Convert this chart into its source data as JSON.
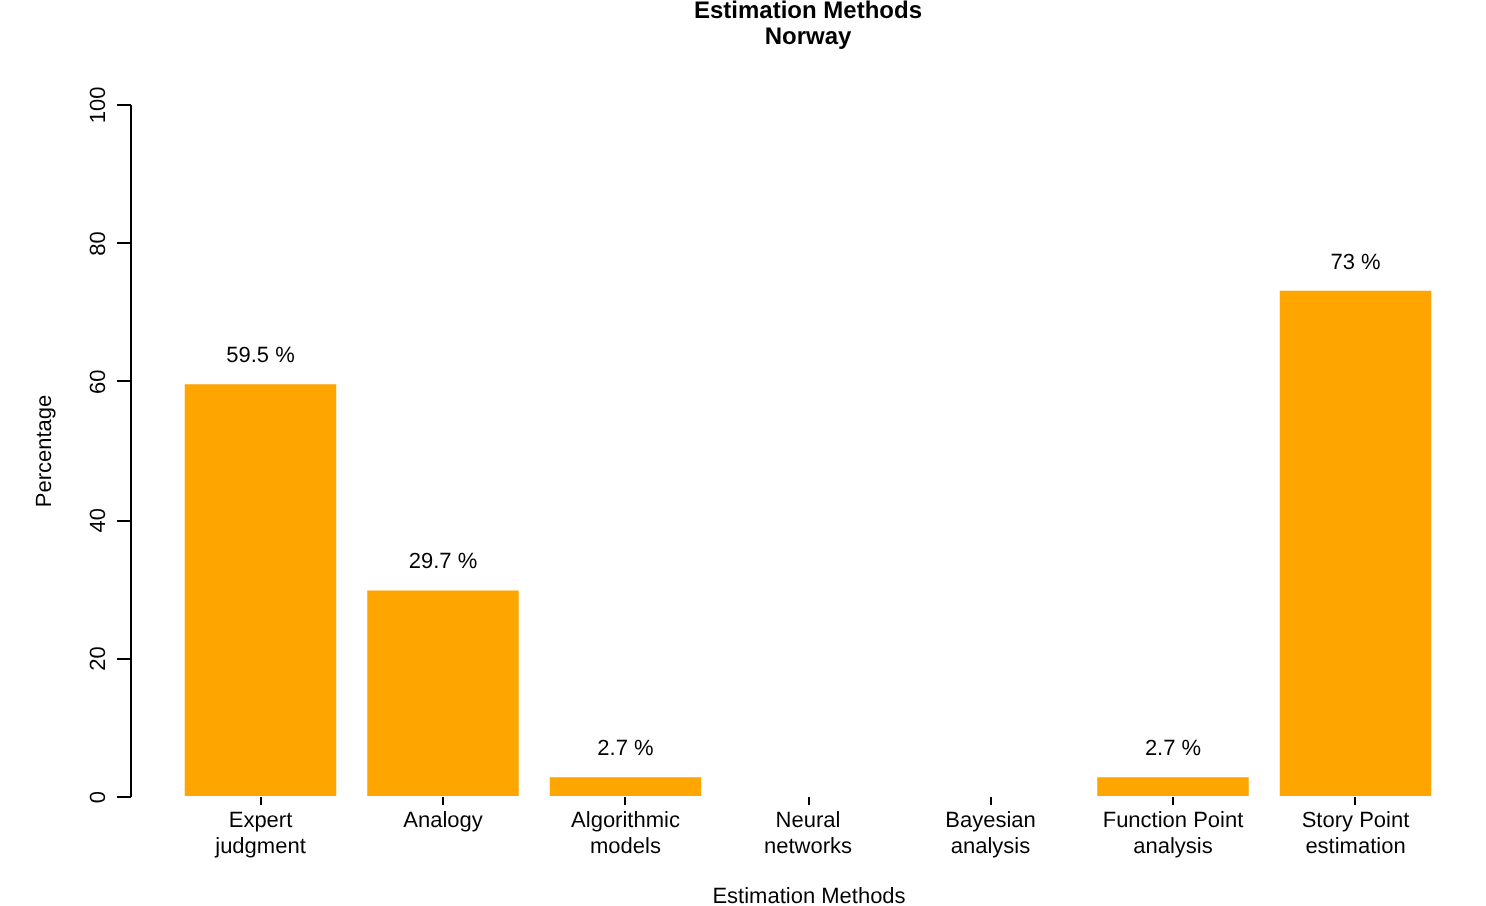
{
  "chart_data": {
    "type": "bar",
    "title": "Estimation Methods",
    "subtitle": "Norway",
    "xlabel": "Estimation Methods",
    "ylabel": "Percentage",
    "categories": [
      "Expert\njudgment",
      "Analogy",
      "Algorithmic\nmodels",
      "Neural\nnetworks",
      "Bayesian\nanalysis",
      "Function Point\nanalysis",
      "Story Point\nestimation"
    ],
    "values": [
      59.5,
      29.7,
      2.7,
      0,
      0,
      2.7,
      73
    ],
    "value_labels": [
      "59.5 %",
      "29.7 %",
      "2.7 %",
      null,
      null,
      "2.7 %",
      "73 %"
    ],
    "color": "#ffa500",
    "ylim": [
      0,
      100
    ],
    "yticks": [
      0,
      20,
      40,
      60,
      80,
      100
    ],
    "grid": false
  }
}
